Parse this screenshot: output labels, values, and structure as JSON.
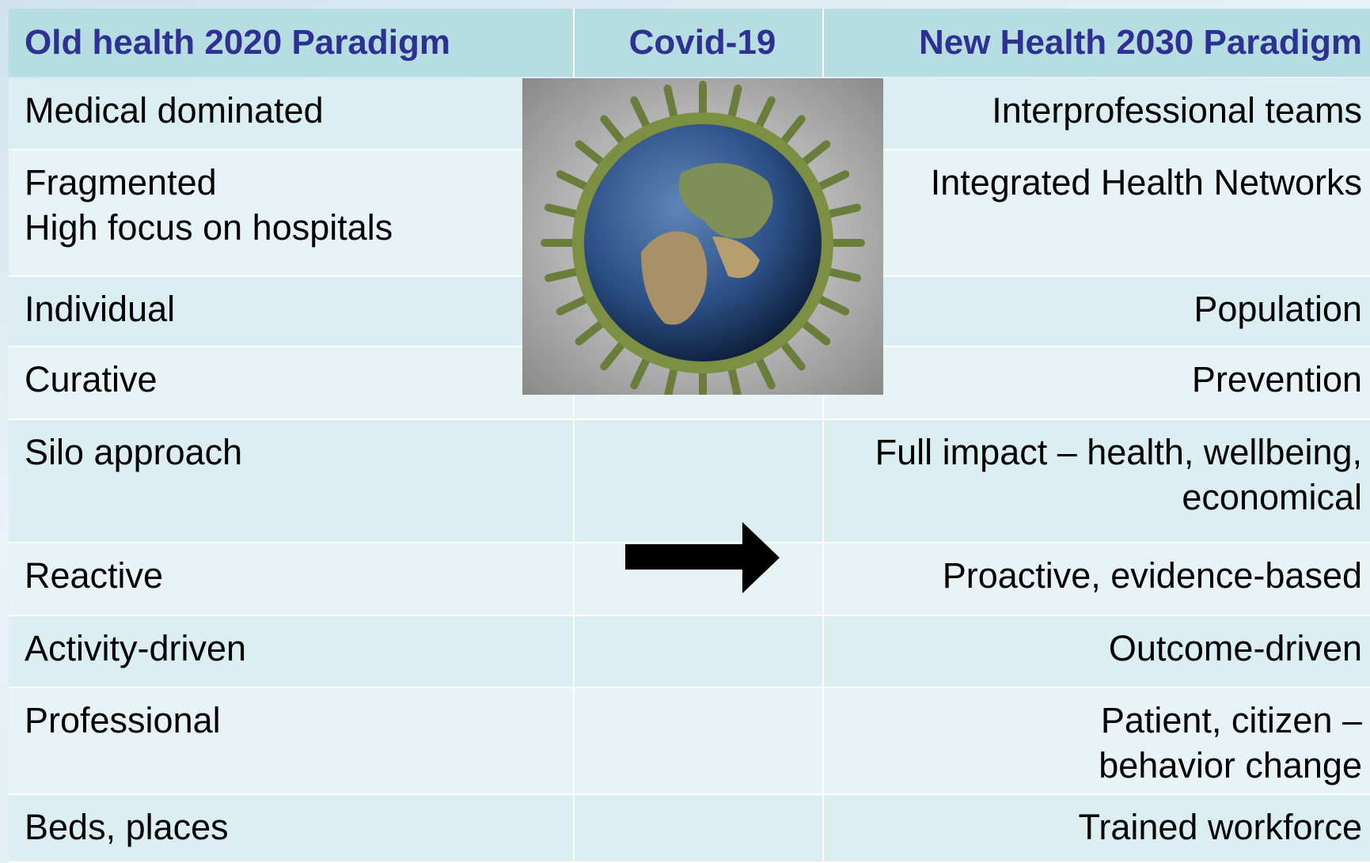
{
  "header": {
    "columns": [
      "Old health 2020 Paradigm",
      "Covid-19",
      "New Health 2030 Paradigm"
    ]
  },
  "table": {
    "rows": [
      {
        "old": [
          "Medical dominated"
        ],
        "new": [
          "Interprofessional teams"
        ]
      },
      {
        "old": [
          "Fragmented",
          "High focus on hospitals"
        ],
        "new": [
          "Integrated Health Networks"
        ]
      },
      {
        "old": [
          "Individual"
        ],
        "new": [
          "Population"
        ]
      },
      {
        "old": [
          "Curative"
        ],
        "new": [
          "Prevention"
        ]
      },
      {
        "old": [
          "Silo approach"
        ],
        "new": [
          "Full impact – health, wellbeing,",
          "economical"
        ]
      },
      {
        "old": [
          "Reactive"
        ],
        "new": [
          "Proactive, evidence-based"
        ]
      },
      {
        "old": [
          "Activity-driven"
        ],
        "new": [
          "Outcome-driven"
        ]
      },
      {
        "old": [
          "Professional"
        ],
        "new": [
          "Patient, citizen –",
          "behavior change"
        ]
      },
      {
        "old": [
          "Beds, places"
        ],
        "new": [
          "Trained workforce"
        ]
      }
    ]
  }
}
